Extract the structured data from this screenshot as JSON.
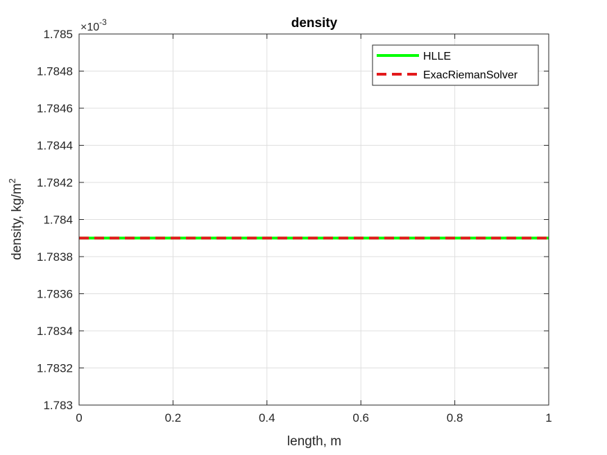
{
  "chart_data": {
    "type": "line",
    "title": "density",
    "xlabel": "length, m",
    "ylabel_main": "density, kg/m",
    "ylabel_sup": "2",
    "y_exponent_prefix": "×10",
    "y_exponent_power": "-3",
    "xlim": [
      0,
      1
    ],
    "ylim": [
      1.783,
      1.785
    ],
    "xticks": [
      0,
      0.2,
      0.4,
      0.6,
      0.8,
      1
    ],
    "xtick_labels": [
      "0",
      "0.2",
      "0.4",
      "0.6",
      "0.8",
      "1"
    ],
    "yticks": [
      1.783,
      1.7832,
      1.7834,
      1.7836,
      1.7838,
      1.784,
      1.7842,
      1.7844,
      1.7846,
      1.7848,
      1.785
    ],
    "ytick_labels": [
      "1.783",
      "1.7832",
      "1.7834",
      "1.7836",
      "1.7838",
      "1.784",
      "1.7842",
      "1.7844",
      "1.7846",
      "1.7848",
      "1.785"
    ],
    "grid": true,
    "legend_position": "top-right",
    "series": [
      {
        "name": "HLLE",
        "color": "#00ff00",
        "style": "solid",
        "x": [
          0,
          1
        ],
        "y": [
          1.7839,
          1.7839
        ]
      },
      {
        "name": "ExacRiemanSolver",
        "color": "#e31a1c",
        "style": "dashed",
        "x": [
          0,
          1
        ],
        "y": [
          1.7839,
          1.7839
        ]
      }
    ]
  }
}
